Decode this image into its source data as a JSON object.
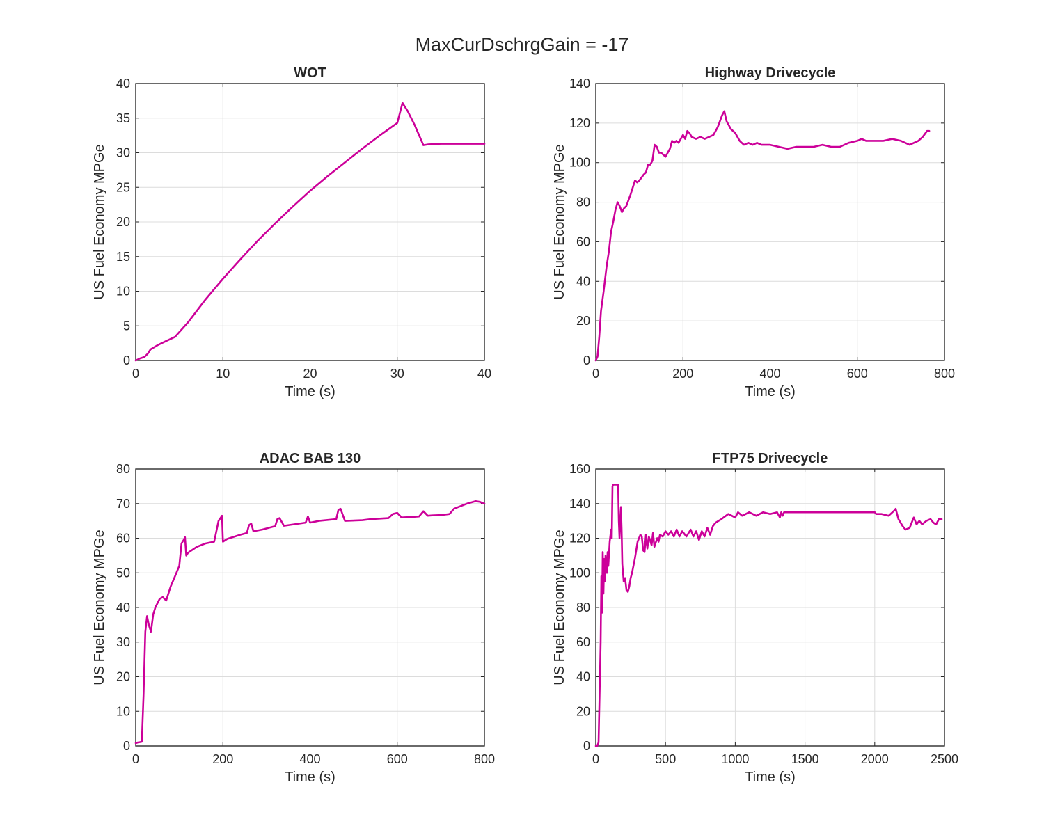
{
  "figure": {
    "suptitle": "MaxCurDschrgGain = -17",
    "line_color": "#cc0099"
  },
  "chart_data": [
    {
      "type": "line",
      "title": "WOT",
      "xlabel": "Time (s)",
      "ylabel": "US Fuel Economy MPGe",
      "xlim": [
        0,
        40
      ],
      "ylim": [
        0,
        40
      ],
      "xticks": [
        0,
        10,
        20,
        30,
        40
      ],
      "yticks": [
        0,
        5,
        10,
        15,
        20,
        25,
        30,
        35,
        40
      ],
      "grid": true,
      "x": [
        0,
        0.5,
        1,
        1.4,
        1.7,
        2.5,
        3.5,
        4.5,
        6,
        8,
        10,
        12,
        14,
        16,
        18,
        20,
        22,
        24,
        26,
        28,
        30,
        30.6,
        31.2,
        32,
        33,
        33.5,
        35,
        40
      ],
      "y": [
        0,
        0.3,
        0.5,
        1.0,
        1.6,
        2.2,
        2.8,
        3.4,
        5.5,
        8.8,
        11.8,
        14.6,
        17.3,
        19.8,
        22.2,
        24.5,
        26.6,
        28.6,
        30.6,
        32.5,
        34.3,
        37.2,
        36.0,
        34.0,
        31.1,
        31.2,
        31.3,
        31.3
      ]
    },
    {
      "type": "line",
      "title": "Highway Drivecycle",
      "xlabel": "Time (s)",
      "ylabel": "US Fuel Economy MPGe",
      "xlim": [
        0,
        800
      ],
      "ylim": [
        0,
        140
      ],
      "xticks": [
        0,
        200,
        400,
        600,
        800
      ],
      "yticks": [
        0,
        20,
        40,
        60,
        80,
        100,
        120,
        140
      ],
      "grid": true,
      "x": [
        0,
        4,
        8,
        12,
        18,
        25,
        30,
        35,
        40,
        45,
        50,
        55,
        60,
        65,
        70,
        80,
        90,
        95,
        100,
        110,
        115,
        120,
        125,
        130,
        135,
        140,
        145,
        150,
        160,
        170,
        175,
        180,
        185,
        190,
        200,
        205,
        210,
        215,
        220,
        230,
        240,
        250,
        260,
        270,
        280,
        290,
        295,
        300,
        310,
        320,
        330,
        340,
        350,
        360,
        370,
        380,
        400,
        420,
        440,
        460,
        480,
        500,
        520,
        540,
        560,
        580,
        600,
        610,
        620,
        640,
        660,
        680,
        700,
        720,
        740,
        750,
        760,
        765
      ],
      "y": [
        0,
        2,
        12,
        25,
        35,
        48,
        55,
        65,
        70,
        76,
        80,
        78,
        75,
        77,
        78,
        84,
        91,
        90,
        91,
        94,
        95,
        99,
        99,
        101,
        109,
        108,
        105,
        105,
        103,
        107,
        111,
        110,
        111,
        110,
        114,
        112,
        116,
        115,
        113,
        112,
        113,
        112,
        113,
        114,
        118,
        124,
        126,
        121,
        117,
        115,
        111,
        109,
        110,
        109,
        110,
        109,
        109,
        108,
        107,
        108,
        108,
        108,
        109,
        108,
        108,
        110,
        111,
        112,
        111,
        111,
        111,
        112,
        111,
        109,
        111,
        113,
        116,
        116
      ]
    },
    {
      "type": "line",
      "title": "ADAC BAB 130",
      "xlabel": "Time (s)",
      "ylabel": "US Fuel Economy MPGe",
      "xlim": [
        0,
        800
      ],
      "ylim": [
        0,
        80
      ],
      "xticks": [
        0,
        200,
        400,
        600,
        800
      ],
      "yticks": [
        0,
        10,
        20,
        30,
        40,
        50,
        60,
        70,
        80
      ],
      "grid": true,
      "x": [
        0,
        5,
        10,
        14,
        18,
        22,
        26,
        30,
        35,
        40,
        45,
        55,
        62,
        70,
        80,
        90,
        100,
        105,
        110,
        113,
        116,
        120,
        140,
        160,
        180,
        190,
        198,
        200,
        210,
        240,
        255,
        260,
        265,
        270,
        290,
        320,
        325,
        330,
        340,
        390,
        395,
        400,
        420,
        460,
        465,
        470,
        480,
        520,
        540,
        580,
        590,
        600,
        610,
        640,
        650,
        660,
        670,
        680,
        700,
        720,
        730,
        740,
        760,
        780,
        790,
        795,
        800
      ],
      "y": [
        0.8,
        1.0,
        1.1,
        1.2,
        15,
        33,
        37.5,
        35,
        33,
        38,
        40,
        42.5,
        43,
        42,
        46,
        49,
        52,
        58.5,
        59.5,
        60.3,
        55,
        55.8,
        57.5,
        58.5,
        59,
        65,
        66.5,
        59,
        59.8,
        61,
        61.5,
        63.8,
        64.2,
        62,
        62.5,
        63.5,
        65.5,
        65.8,
        63.6,
        64.5,
        66.3,
        64.5,
        65,
        65.5,
        68.2,
        68.5,
        65,
        65.2,
        65.5,
        65.8,
        67,
        67.3,
        66,
        66.2,
        66.3,
        67.8,
        66.5,
        66.6,
        66.7,
        67,
        68.5,
        69,
        70,
        70.7,
        70.5,
        70.2,
        70
      ]
    },
    {
      "type": "line",
      "title": "FTP75 Drivecycle",
      "xlabel": "Time (s)",
      "ylabel": "US Fuel Economy MPGe",
      "xlim": [
        0,
        2500
      ],
      "ylim": [
        0,
        160
      ],
      "xticks": [
        0,
        500,
        1000,
        1500,
        2000,
        2500
      ],
      "yticks": [
        0,
        20,
        40,
        60,
        80,
        100,
        120,
        140,
        160
      ],
      "grid": true,
      "x": [
        0,
        10,
        20,
        30,
        35,
        40,
        45,
        50,
        55,
        60,
        65,
        70,
        80,
        85,
        90,
        100,
        110,
        115,
        120,
        125,
        130,
        140,
        160,
        165,
        170,
        180,
        185,
        190,
        200,
        210,
        220,
        230,
        240,
        250,
        260,
        280,
        300,
        320,
        330,
        340,
        350,
        360,
        370,
        380,
        400,
        410,
        420,
        440,
        450,
        460,
        480,
        500,
        520,
        540,
        560,
        580,
        600,
        620,
        650,
        680,
        700,
        720,
        740,
        760,
        780,
        800,
        820,
        840,
        860,
        900,
        950,
        1000,
        1020,
        1050,
        1100,
        1150,
        1200,
        1250,
        1300,
        1320,
        1330,
        1340,
        1350,
        1400,
        1500,
        1600,
        1700,
        1800,
        1900,
        2000,
        2010,
        2050,
        2100,
        2140,
        2150,
        2160,
        2170,
        2200,
        2220,
        2250,
        2280,
        2300,
        2320,
        2340,
        2370,
        2400,
        2420,
        2440,
        2460,
        2480
      ],
      "y": [
        0,
        0,
        2,
        40,
        60,
        98,
        77,
        112,
        88,
        108,
        95,
        110,
        100,
        112,
        104,
        118,
        125,
        120,
        150,
        151,
        151,
        151,
        151,
        130,
        120,
        138,
        125,
        105,
        95,
        97,
        90,
        89,
        92,
        97,
        100,
        108,
        118,
        122,
        121,
        113,
        112,
        122,
        114,
        121,
        116,
        123,
        115,
        120,
        118,
        122,
        121,
        124,
        122,
        124,
        121,
        125,
        121,
        124,
        121,
        125,
        121,
        124,
        119,
        124,
        121,
        126,
        122,
        127,
        129,
        131,
        134,
        132,
        135,
        133,
        135,
        133,
        135,
        134,
        135,
        132,
        135,
        133,
        135,
        135,
        135,
        135,
        135,
        135,
        135,
        135,
        134,
        134,
        133,
        136,
        137,
        134,
        131,
        127,
        125,
        126,
        132,
        128,
        130,
        128,
        130,
        131,
        129,
        128,
        131,
        131
      ]
    }
  ]
}
